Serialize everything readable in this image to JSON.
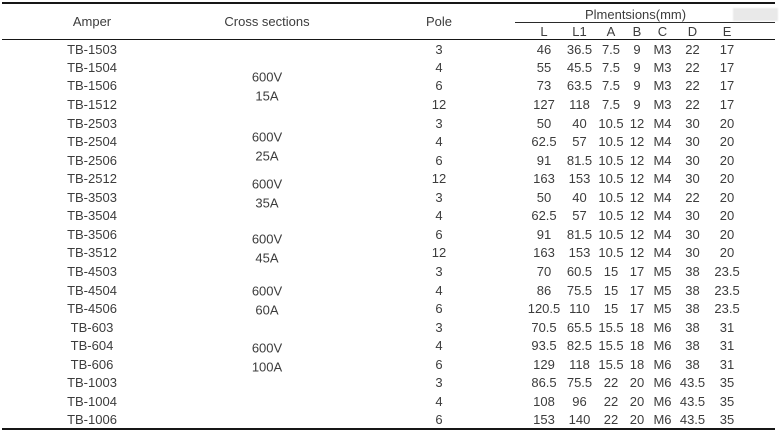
{
  "table": {
    "headers": {
      "amper": "Amper",
      "cross_sections": "Cross sections",
      "pole": "Pole",
      "dimensions_group": "Plmentsions(mm)",
      "dimension_subcolumns": [
        "L",
        "L1",
        "A",
        "B",
        "C",
        "D",
        "E"
      ]
    },
    "cross_section_groups": [
      {
        "voltage": "600V",
        "amperage": "15A"
      },
      {
        "voltage": "600V",
        "amperage": "25A"
      },
      {
        "voltage": "600V",
        "amperage": "35A"
      },
      {
        "voltage": "600V",
        "amperage": "45A"
      },
      {
        "voltage": "600V",
        "amperage": "60A"
      },
      {
        "voltage": "600V",
        "amperage": "100A"
      }
    ],
    "rows": [
      {
        "amper": "TB-1503",
        "pole": "3",
        "dims": [
          "46",
          "36.5",
          "7.5",
          "9",
          "M3",
          "22",
          "17"
        ]
      },
      {
        "amper": "TB-1504",
        "pole": "4",
        "dims": [
          "55",
          "45.5",
          "7.5",
          "9",
          "M3",
          "22",
          "17"
        ]
      },
      {
        "amper": "TB-1506",
        "pole": "6",
        "dims": [
          "73",
          "63.5",
          "7.5",
          "9",
          "M3",
          "22",
          "17"
        ]
      },
      {
        "amper": "TB-1512",
        "pole": "12",
        "dims": [
          "127",
          "118",
          "7.5",
          "9",
          "M3",
          "22",
          "17"
        ]
      },
      {
        "amper": "TB-2503",
        "pole": "3",
        "dims": [
          "50",
          "40",
          "10.5",
          "12",
          "M4",
          "30",
          "20"
        ]
      },
      {
        "amper": "TB-2504",
        "pole": "4",
        "dims": [
          "62.5",
          "57",
          "10.5",
          "12",
          "M4",
          "30",
          "20"
        ]
      },
      {
        "amper": "TB-2506",
        "pole": "6",
        "dims": [
          "91",
          "81.5",
          "10.5",
          "12",
          "M4",
          "30",
          "20"
        ]
      },
      {
        "amper": "TB-2512",
        "pole": "12",
        "dims": [
          "163",
          "153",
          "10.5",
          "12",
          "M4",
          "30",
          "20"
        ]
      },
      {
        "amper": "TB-3503",
        "pole": "3",
        "dims": [
          "50",
          "40",
          "10.5",
          "12",
          "M4",
          "22",
          "20"
        ]
      },
      {
        "amper": "TB-3504",
        "pole": "4",
        "dims": [
          "62.5",
          "57",
          "10.5",
          "12",
          "M4",
          "30",
          "20"
        ]
      },
      {
        "amper": "TB-3506",
        "pole": "6",
        "dims": [
          "91",
          "81.5",
          "10.5",
          "12",
          "M4",
          "30",
          "20"
        ]
      },
      {
        "amper": "TB-3512",
        "pole": "12",
        "dims": [
          "163",
          "153",
          "10.5",
          "12",
          "M4",
          "30",
          "20"
        ]
      },
      {
        "amper": "TB-4503",
        "pole": "3",
        "dims": [
          "70",
          "60.5",
          "15",
          "17",
          "M5",
          "38",
          "23.5"
        ]
      },
      {
        "amper": "TB-4504",
        "pole": "4",
        "dims": [
          "86",
          "75.5",
          "15",
          "17",
          "M5",
          "38",
          "23.5"
        ]
      },
      {
        "amper": "TB-4506",
        "pole": "6",
        "dims": [
          "120.5",
          "110",
          "15",
          "17",
          "M5",
          "38",
          "23.5"
        ]
      },
      {
        "amper": "TB-603",
        "pole": "3",
        "dims": [
          "70.5",
          "65.5",
          "15.5",
          "18",
          "M6",
          "38",
          "31"
        ]
      },
      {
        "amper": "TB-604",
        "pole": "4",
        "dims": [
          "93.5",
          "82.5",
          "15.5",
          "18",
          "M6",
          "38",
          "31"
        ]
      },
      {
        "amper": "TB-606",
        "pole": "6",
        "dims": [
          "129",
          "118",
          "15.5",
          "18",
          "M6",
          "38",
          "31"
        ]
      },
      {
        "amper": "TB-1003",
        "pole": "3",
        "dims": [
          "86.5",
          "75.5",
          "22",
          "20",
          "M6",
          "43.5",
          "35"
        ]
      },
      {
        "amper": "TB-1004",
        "pole": "4",
        "dims": [
          "108",
          "96",
          "22",
          "20",
          "M6",
          "43.5",
          "35"
        ]
      },
      {
        "amper": "TB-1006",
        "pole": "6",
        "dims": [
          "153",
          "140",
          "22",
          "20",
          "M6",
          "43.5",
          "35"
        ]
      }
    ]
  },
  "colors": {
    "text": "#3c3c3c",
    "rule_lines": "#161616",
    "artifact_gray": "#e9e9e9",
    "background": "#ffffff"
  }
}
